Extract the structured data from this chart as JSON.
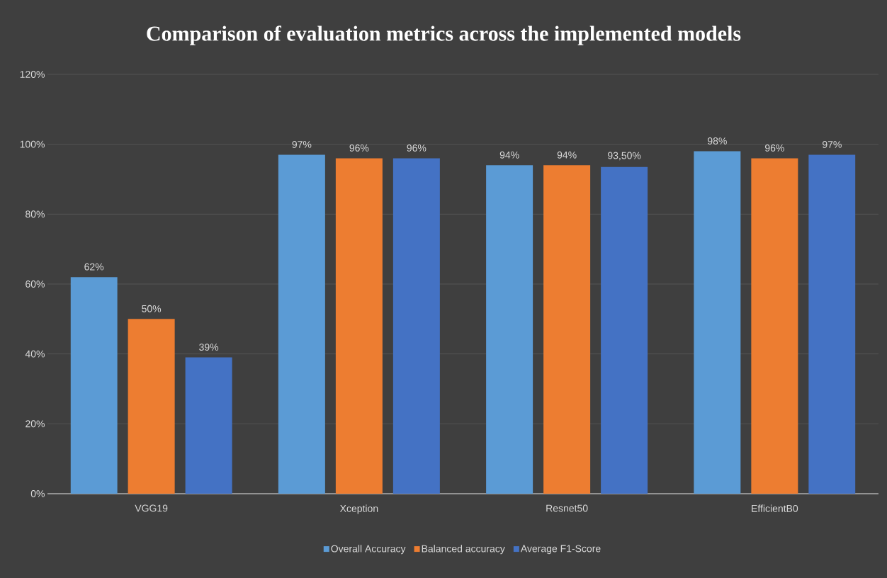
{
  "chart_data": {
    "type": "bar",
    "title": "Comparison of evaluation metrics across the implemented models",
    "categories": [
      "VGG19",
      "Xception",
      "Resnet50",
      "EfficientB0"
    ],
    "series": [
      {
        "name": "Overall Accuracy",
        "color": "#5b9bd5",
        "values": [
          62,
          97,
          94,
          98
        ],
        "value_labels": [
          "62%",
          "97%",
          "94%",
          "98%"
        ]
      },
      {
        "name": "Balanced accuracy",
        "color": "#ed7d31",
        "values": [
          50,
          96,
          94,
          96
        ],
        "value_labels": [
          "50%",
          "96%",
          "94%",
          "96%"
        ]
      },
      {
        "name": "Average F1-Score",
        "color": "#4472c4",
        "values": [
          39,
          96,
          93.5,
          97
        ],
        "value_labels": [
          "39%",
          "96%",
          "93,50%",
          "97%"
        ]
      }
    ],
    "ylim": [
      0,
      120
    ],
    "yticks": [
      {
        "value": 0,
        "label": "0%"
      },
      {
        "value": 20,
        "label": "20%"
      },
      {
        "value": 40,
        "label": "40%"
      },
      {
        "value": 60,
        "label": "60%"
      },
      {
        "value": 80,
        "label": "80%"
      },
      {
        "value": 100,
        "label": "100%"
      },
      {
        "value": 120,
        "label": "120%"
      }
    ],
    "grid": "y",
    "legend": "bottom"
  }
}
